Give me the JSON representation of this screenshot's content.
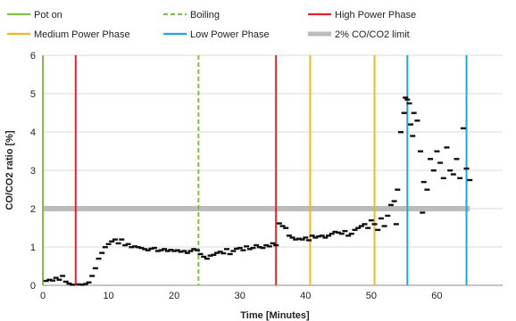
{
  "chart_data": {
    "type": "scatter",
    "title": "",
    "xlabel": "Time [Minutes]",
    "ylabel": "CO/CO2 ratio [%]",
    "xlim": [
      0,
      70
    ],
    "ylim": [
      0,
      6
    ],
    "x_ticks": [
      0,
      10,
      20,
      30,
      40,
      50,
      60
    ],
    "y_ticks": [
      0,
      1,
      2,
      3,
      4,
      5,
      6
    ],
    "grid": "horizontal",
    "legend_position": "top",
    "legend": [
      {
        "label": "Pot on",
        "color": "#7dc242",
        "style": "solid"
      },
      {
        "label": "Boiling",
        "color": "#7dc242",
        "style": "dashed"
      },
      {
        "label": "High Power Phase",
        "color": "#e8202a",
        "style": "solid"
      },
      {
        "label": "Medium Power Phase",
        "color": "#f2b81c",
        "style": "solid"
      },
      {
        "label": "Low Power Phase",
        "color": "#1ba7e0",
        "style": "solid"
      },
      {
        "label": "2% CO/CO2 limit",
        "color": "#bbbbbb",
        "style": "thick"
      }
    ],
    "vertical_markers": [
      {
        "series": "Pot on",
        "x": 0
      },
      {
        "series": "High Power Phase",
        "x": 5
      },
      {
        "series": "Boiling",
        "x": 23.7
      },
      {
        "series": "High Power Phase",
        "x": 35.5
      },
      {
        "series": "Medium Power Phase",
        "x": 40.7
      },
      {
        "series": "Medium Power Phase",
        "x": 50.5
      },
      {
        "series": "Low Power Phase",
        "x": 55.5
      },
      {
        "series": "Low Power Phase",
        "x": 64.5
      }
    ],
    "limit_line": {
      "series": "2% CO/CO2 limit",
      "y": 2,
      "x_range": [
        0,
        65
      ]
    },
    "series": [
      {
        "color": "#111111",
        "points": [
          [
            0.5,
            0.12
          ],
          [
            1,
            0.15
          ],
          [
            1.5,
            0.13
          ],
          [
            2,
            0.2
          ],
          [
            2.5,
            0.15
          ],
          [
            3,
            0.25
          ],
          [
            3.5,
            0.1
          ],
          [
            4,
            0.05
          ],
          [
            4.5,
            0.02
          ],
          [
            5.5,
            0.03
          ],
          [
            6,
            0.02
          ],
          [
            6.5,
            0.04
          ],
          [
            7,
            0.08
          ],
          [
            7.5,
            0.25
          ],
          [
            8,
            0.45
          ],
          [
            8.5,
            0.7
          ],
          [
            9,
            0.85
          ],
          [
            9.5,
            1.0
          ],
          [
            10,
            1.08
          ],
          [
            10.5,
            1.15
          ],
          [
            11,
            1.2
          ],
          [
            11.5,
            1.1
          ],
          [
            12,
            1.2
          ],
          [
            12.5,
            1.05
          ],
          [
            13,
            1.08
          ],
          [
            13.5,
            1.0
          ],
          [
            14,
            1.02
          ],
          [
            14.5,
            1.0
          ],
          [
            15,
            0.98
          ],
          [
            15.5,
            0.95
          ],
          [
            16,
            0.92
          ],
          [
            16.5,
            0.96
          ],
          [
            17,
            0.98
          ],
          [
            17.5,
            0.9
          ],
          [
            18,
            0.92
          ],
          [
            18.5,
            0.95
          ],
          [
            19,
            0.9
          ],
          [
            19.5,
            0.93
          ],
          [
            20,
            0.9
          ],
          [
            20.5,
            0.92
          ],
          [
            21,
            0.88
          ],
          [
            21.5,
            0.9
          ],
          [
            22,
            0.85
          ],
          [
            22.5,
            0.9
          ],
          [
            23,
            0.95
          ],
          [
            23.5,
            0.92
          ],
          [
            24,
            0.82
          ],
          [
            24.5,
            0.75
          ],
          [
            25,
            0.7
          ],
          [
            25.5,
            0.78
          ],
          [
            26,
            0.8
          ],
          [
            26.5,
            0.85
          ],
          [
            27,
            0.88
          ],
          [
            27.5,
            0.84
          ],
          [
            28,
            0.95
          ],
          [
            28.5,
            0.82
          ],
          [
            29,
            0.9
          ],
          [
            29.5,
            0.96
          ],
          [
            30,
            0.98
          ],
          [
            30.5,
            0.92
          ],
          [
            31,
            1.02
          ],
          [
            31.5,
            0.95
          ],
          [
            32,
            0.98
          ],
          [
            32.5,
            1.05
          ],
          [
            33,
            1.0
          ],
          [
            33.5,
            0.98
          ],
          [
            34,
            1.05
          ],
          [
            34.5,
            1.02
          ],
          [
            35,
            1.1
          ],
          [
            35.5,
            1.05
          ],
          [
            36,
            1.62
          ],
          [
            36.5,
            1.55
          ],
          [
            37,
            1.5
          ],
          [
            37.5,
            1.3
          ],
          [
            38,
            1.25
          ],
          [
            38.5,
            1.2
          ],
          [
            39,
            1.22
          ],
          [
            39.5,
            1.2
          ],
          [
            40,
            1.25
          ],
          [
            40.5,
            1.18
          ],
          [
            41,
            1.3
          ],
          [
            41.5,
            1.25
          ],
          [
            42,
            1.28
          ],
          [
            42.5,
            1.3
          ],
          [
            43,
            1.25
          ],
          [
            43.5,
            1.3
          ],
          [
            44,
            1.35
          ],
          [
            44.5,
            1.4
          ],
          [
            45,
            1.38
          ],
          [
            45.5,
            1.35
          ],
          [
            46,
            1.42
          ],
          [
            46.5,
            1.3
          ],
          [
            47,
            1.35
          ],
          [
            47.5,
            1.45
          ],
          [
            48,
            1.5
          ],
          [
            48.5,
            1.55
          ],
          [
            49,
            1.6
          ],
          [
            49.5,
            1.5
          ],
          [
            50,
            1.7
          ],
          [
            50.5,
            1.6
          ],
          [
            51,
            1.45
          ],
          [
            51.5,
            1.75
          ],
          [
            52,
            1.55
          ],
          [
            52.5,
            1.82
          ],
          [
            53,
            2.1
          ],
          [
            53.5,
            2.2
          ],
          [
            54,
            2.5
          ],
          [
            54.5,
            4.0
          ],
          [
            55,
            4.5
          ],
          [
            55.2,
            4.9
          ],
          [
            55.5,
            4.85
          ],
          [
            55.8,
            4.75
          ],
          [
            56,
            4.2
          ],
          [
            56.3,
            3.9
          ],
          [
            56.5,
            4.5
          ],
          [
            57,
            4.3
          ],
          [
            57.5,
            3.5
          ],
          [
            58,
            2.7
          ],
          [
            58.5,
            2.5
          ],
          [
            59,
            3.3
          ],
          [
            59.5,
            3.0
          ],
          [
            60,
            3.5
          ],
          [
            60.5,
            3.2
          ],
          [
            61,
            2.8
          ],
          [
            61.5,
            3.6
          ],
          [
            62,
            3.0
          ],
          [
            62.5,
            2.9
          ],
          [
            63,
            3.3
          ],
          [
            63.5,
            2.8
          ],
          [
            64,
            4.1
          ],
          [
            64.5,
            3.05
          ],
          [
            65,
            2.75
          ],
          [
            53.8,
            1.6
          ],
          [
            57.8,
            1.9
          ]
        ]
      }
    ]
  }
}
